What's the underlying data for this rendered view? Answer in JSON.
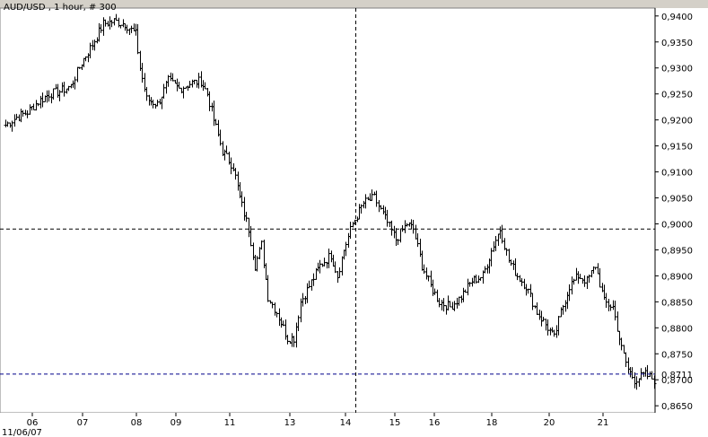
{
  "chart_data": {
    "type": "ohlc",
    "title": "AUD/USD , 1 hour, # 300",
    "ylim": [
      0.864,
      0.941
    ],
    "y_ticks": [
      "0,9400",
      "0,9350",
      "0,9300",
      "0,9250",
      "0,9200",
      "0,9150",
      "0,9100",
      "0,9050",
      "0,9000",
      "0,8950",
      "0,8900",
      "0,8850",
      "0,8800",
      "0,8750",
      "0,8700",
      "0,8650"
    ],
    "y_tick_values": [
      0.94,
      0.935,
      0.93,
      0.925,
      0.92,
      0.915,
      0.91,
      0.905,
      0.9,
      0.895,
      0.89,
      0.885,
      0.88,
      0.875,
      0.87,
      0.865
    ],
    "x_ticks": [
      "06",
      "07",
      "08",
      "09",
      "11",
      "13",
      "14",
      "15",
      "16",
      "18",
      "20",
      "21"
    ],
    "date_label": "11/06/07",
    "price_labels": [
      {
        "value": 0.9,
        "text": "0,9000",
        "color": "#00008b"
      },
      {
        "value": 0.8711,
        "text": "0,8711",
        "color": "#00008b"
      }
    ],
    "crosshair": {
      "x_label": "14",
      "y_value": 0.899
    },
    "current_price_line": 0.8711,
    "colors": {
      "background": "#ffffff",
      "frame": "#d4d0c8",
      "bars": "#000000",
      "grid_dashes": "#000000",
      "current_line": "#00008b"
    },
    "legend": "none",
    "grid": false,
    "waypoints": [
      [
        0,
        0.919
      ],
      [
        5,
        0.9205
      ],
      [
        10,
        0.9215
      ],
      [
        15,
        0.9235
      ],
      [
        20,
        0.925
      ],
      [
        25,
        0.9255
      ],
      [
        30,
        0.9265
      ],
      [
        35,
        0.931
      ],
      [
        40,
        0.9345
      ],
      [
        45,
        0.9385
      ],
      [
        50,
        0.939
      ],
      [
        55,
        0.9385
      ],
      [
        60,
        0.9365
      ],
      [
        62,
        0.93
      ],
      [
        65,
        0.924
      ],
      [
        70,
        0.923
      ],
      [
        75,
        0.9275
      ],
      [
        80,
        0.926
      ],
      [
        85,
        0.927
      ],
      [
        90,
        0.9275
      ],
      [
        93,
        0.925
      ],
      [
        96,
        0.92
      ],
      [
        100,
        0.914
      ],
      [
        105,
        0.911
      ],
      [
        108,
        0.905
      ],
      [
        112,
        0.899
      ],
      [
        115,
        0.892
      ],
      [
        118,
        0.896
      ],
      [
        121,
        0.886
      ],
      [
        125,
        0.883
      ],
      [
        130,
        0.878
      ],
      [
        133,
        0.878
      ],
      [
        136,
        0.885
      ],
      [
        140,
        0.888
      ],
      [
        145,
        0.892
      ],
      [
        150,
        0.894
      ],
      [
        153,
        0.89
      ],
      [
        156,
        0.895
      ],
      [
        160,
        0.9
      ],
      [
        165,
        0.904
      ],
      [
        170,
        0.905
      ],
      [
        175,
        0.901
      ],
      [
        180,
        0.897
      ],
      [
        185,
        0.9
      ],
      [
        188,
        0.899
      ],
      [
        192,
        0.892
      ],
      [
        196,
        0.888
      ],
      [
        200,
        0.885
      ],
      [
        205,
        0.884
      ],
      [
        210,
        0.886
      ],
      [
        215,
        0.889
      ],
      [
        220,
        0.89
      ],
      [
        225,
        0.896
      ],
      [
        228,
        0.899
      ],
      [
        232,
        0.893
      ],
      [
        236,
        0.89
      ],
      [
        240,
        0.888
      ],
      [
        245,
        0.883
      ],
      [
        250,
        0.88
      ],
      [
        253,
        0.878
      ],
      [
        256,
        0.883
      ],
      [
        260,
        0.888
      ],
      [
        264,
        0.89
      ],
      [
        268,
        0.889
      ],
      [
        272,
        0.892
      ],
      [
        276,
        0.885
      ],
      [
        280,
        0.884
      ],
      [
        284,
        0.876
      ],
      [
        287,
        0.872
      ],
      [
        290,
        0.87
      ],
      [
        295,
        0.871
      ],
      [
        299,
        0.87
      ]
    ]
  }
}
